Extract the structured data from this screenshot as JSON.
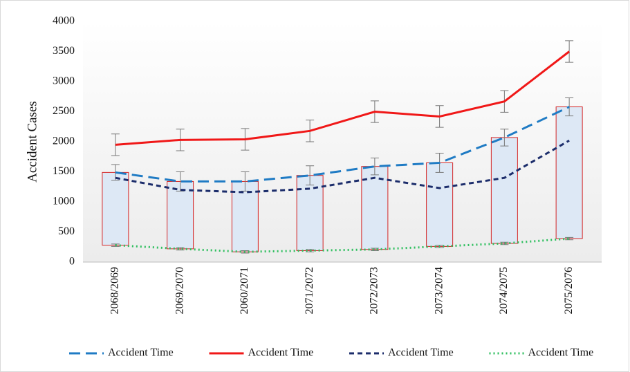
{
  "chart_data": {
    "type": "line",
    "y_label": "Accident Cases",
    "categories": [
      "2068/2069",
      "2069/2070",
      "2060/2071",
      "2071/2072",
      "2072/2073",
      "2073/2074",
      "2074/2075",
      "2075/2076"
    ],
    "series": [
      {
        "name": "Accident Time",
        "color": "#1f7bc4",
        "style": "dashed",
        "values": [
          1490,
          1340,
          1340,
          1440,
          1590,
          1650,
          2070,
          2580
        ],
        "errors": [
          130,
          160,
          160,
          160,
          140,
          160,
          140,
          150
        ]
      },
      {
        "name": "Accident Time",
        "color": "#f01818",
        "style": "solid",
        "values": [
          1950,
          2030,
          2040,
          2180,
          2500,
          2420,
          2670,
          3500
        ],
        "errors": [
          180,
          180,
          180,
          180,
          180,
          180,
          180,
          180
        ]
      },
      {
        "name": "Accident Time",
        "color": "#1c2d6b",
        "style": "short-dash",
        "values": [
          1400,
          1200,
          1160,
          1220,
          1400,
          1230,
          1400,
          2020
        ]
      },
      {
        "name": "Accident Time",
        "color": "#2fbf5f",
        "style": "dotted",
        "values": [
          280,
          220,
          170,
          190,
          210,
          260,
          310,
          390
        ],
        "errors": [
          20,
          20,
          20,
          20,
          20,
          20,
          20,
          20
        ]
      }
    ],
    "box_fill": "#dde8f5",
    "box_stroke": "#d42424",
    "ylim": [
      0,
      4000
    ],
    "yticks": [
      0,
      500,
      1000,
      1500,
      2000,
      2500,
      3000,
      3500,
      4000
    ],
    "grid": false,
    "legend": "bottom"
  }
}
